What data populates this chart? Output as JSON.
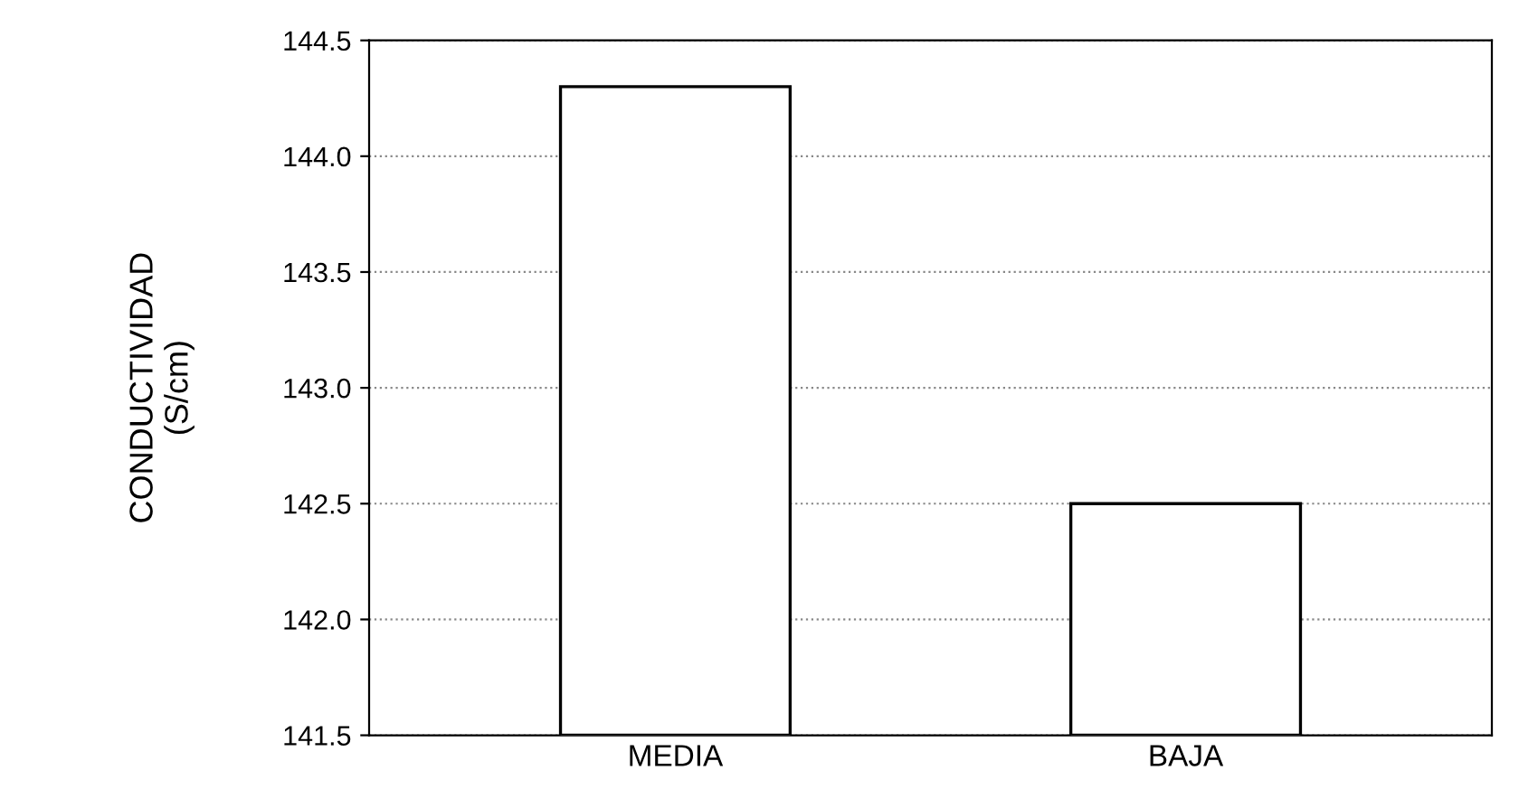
{
  "chart_data": {
    "type": "bar",
    "ylabel": "CONDUCTIVIDAD\n(S/cm)",
    "categories": [
      "MEDIA",
      "BAJA"
    ],
    "values": [
      144.3,
      142.5
    ],
    "color": "#ffffff",
    "ylim": [
      141.5,
      144.5
    ],
    "yticks": [
      141.5,
      {
        "value": 142,
        "label": "142.0"
      },
      142.5,
      {
        "value": 143,
        "label": "143.0"
      },
      143.5,
      {
        "value": 144,
        "label": "144.0"
      },
      144.5
    ],
    "grid": "y"
  }
}
